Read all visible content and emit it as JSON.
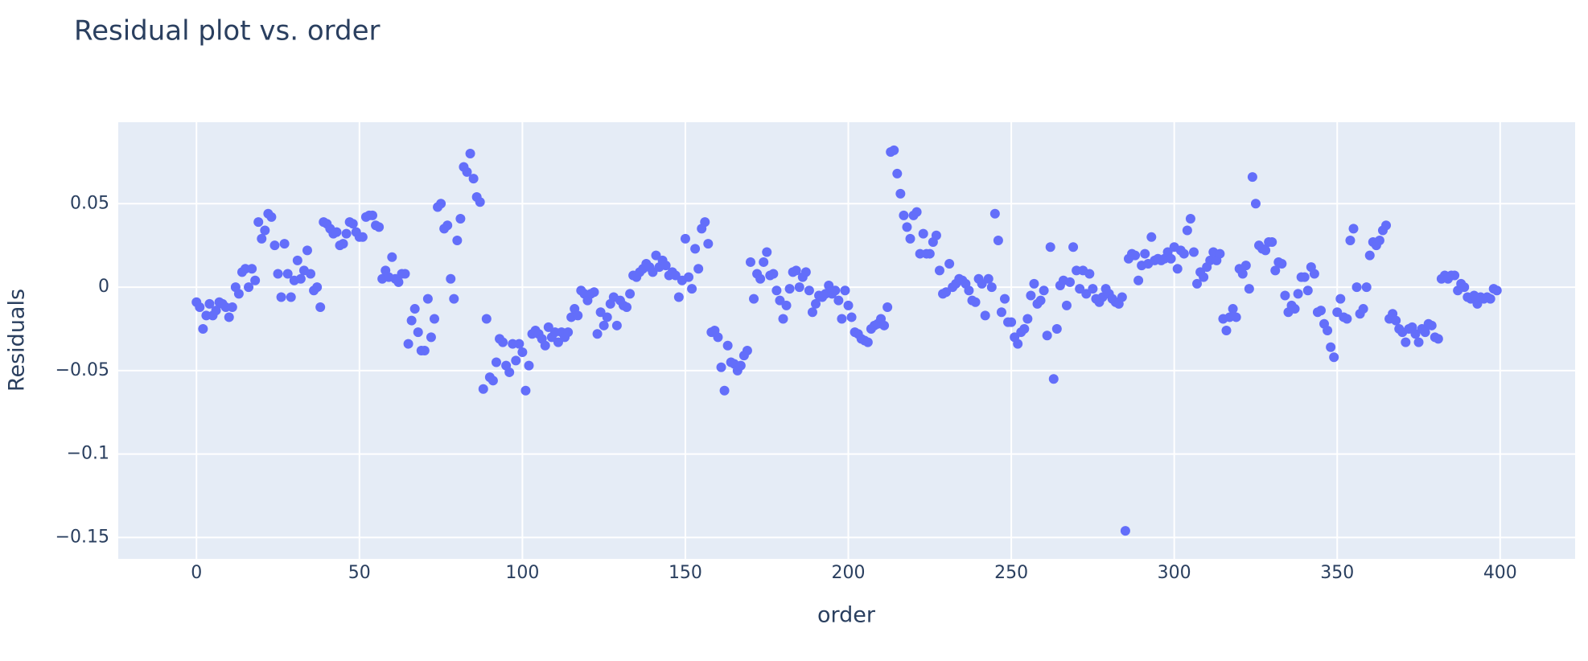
{
  "chart_data": {
    "type": "scatter",
    "title": "Residual plot vs. order",
    "x_label": "order",
    "y_label": "Residuals",
    "color": "#636efa",
    "grid": true,
    "xlim": [
      -24,
      423
    ],
    "ylim": [
      -0.1628,
      0.0988
    ],
    "xticks": [
      0,
      50,
      100,
      150,
      200,
      250,
      300,
      350,
      400
    ],
    "yticks": [
      {
        "value": -0.15,
        "label": "−0.15"
      },
      {
        "value": -0.1,
        "label": "−0.1"
      },
      {
        "value": -0.05,
        "label": "−0.05"
      },
      0,
      0.05
    ],
    "series": [
      {
        "name": "Residuals",
        "color": "#636efa",
        "x": [
          0,
          1,
          2,
          3,
          4,
          5,
          6,
          7,
          8,
          9,
          10,
          11,
          12,
          13,
          14,
          15,
          16,
          17,
          18,
          19,
          20,
          21,
          22,
          23,
          24,
          25,
          26,
          27,
          28,
          29,
          30,
          31,
          32,
          33,
          34,
          35,
          36,
          37,
          38,
          39,
          40,
          41,
          42,
          43,
          44,
          45,
          46,
          47,
          48,
          49,
          50,
          51,
          52,
          53,
          54,
          55,
          56,
          57,
          58,
          59,
          60,
          61,
          62,
          63,
          64,
          65,
          66,
          67,
          68,
          69,
          70,
          71,
          72,
          73,
          74,
          75,
          76,
          77,
          78,
          79,
          80,
          81,
          82,
          83,
          84,
          85,
          86,
          87,
          88,
          89,
          90,
          91,
          92,
          93,
          94,
          95,
          96,
          97,
          98,
          99,
          100,
          101,
          102,
          103,
          104,
          105,
          106,
          107,
          108,
          109,
          110,
          111,
          112,
          113,
          114,
          115,
          116,
          117,
          118,
          119,
          120,
          121,
          122,
          123,
          124,
          125,
          126,
          127,
          128,
          129,
          130,
          131,
          132,
          133,
          134,
          135,
          136,
          137,
          138,
          139,
          140,
          141,
          142,
          143,
          144,
          145,
          146,
          147,
          148,
          149,
          150,
          151,
          152,
          153,
          154,
          155,
          156,
          157,
          158,
          159,
          160,
          161,
          162,
          163,
          164,
          165,
          166,
          167,
          168,
          169,
          170,
          171,
          172,
          173,
          174,
          175,
          176,
          177,
          178,
          179,
          180,
          181,
          182,
          183,
          184,
          185,
          186,
          187,
          188,
          189,
          190,
          191,
          192,
          193,
          194,
          195,
          196,
          197,
          198,
          199,
          200,
          201,
          202,
          203,
          204,
          205,
          206,
          207,
          208,
          209,
          210,
          211,
          212,
          213,
          214,
          215,
          216,
          217,
          218,
          219,
          220,
          221,
          222,
          223,
          224,
          225,
          226,
          227,
          228,
          229,
          230,
          231,
          232,
          233,
          234,
          235,
          236,
          237,
          238,
          239,
          240,
          241,
          242,
          243,
          244,
          245,
          246,
          247,
          248,
          249,
          250,
          251,
          252,
          253,
          254,
          255,
          256,
          257,
          258,
          259,
          260,
          261,
          262,
          263,
          264,
          265,
          266,
          267,
          268,
          269,
          270,
          271,
          272,
          273,
          274,
          275,
          276,
          277,
          278,
          279,
          280,
          281,
          282,
          283,
          284,
          285,
          286,
          287,
          288,
          289,
          290,
          291,
          292,
          293,
          294,
          295,
          296,
          297,
          298,
          299,
          300,
          301,
          302,
          303,
          304,
          305,
          306,
          307,
          308,
          309,
          310,
          311,
          312,
          313,
          314,
          315,
          316,
          317,
          318,
          319,
          320,
          321,
          322,
          323,
          324,
          325,
          326,
          327,
          328,
          329,
          330,
          331,
          332,
          333,
          334,
          335,
          336,
          337,
          338,
          339,
          340,
          341,
          342,
          343,
          344,
          345,
          346,
          347,
          348,
          349,
          350,
          351,
          352,
          353,
          354,
          355,
          356,
          357,
          358,
          359,
          360,
          361,
          362,
          363,
          364,
          365,
          366,
          367,
          368,
          369,
          370,
          371,
          372,
          373,
          374,
          375,
          376,
          377,
          378,
          379,
          380,
          381,
          382,
          383,
          384,
          385,
          386,
          387,
          388,
          389,
          390,
          391,
          392,
          393,
          394,
          395,
          396,
          397,
          398,
          399
        ],
        "values": [
          -0.009,
          -0.012,
          -0.025,
          -0.017,
          -0.01,
          -0.017,
          -0.014,
          -0.009,
          -0.01,
          -0.012,
          -0.018,
          -0.012,
          0.0,
          -0.004,
          0.009,
          0.011,
          0.0,
          0.011,
          0.004,
          0.039,
          0.029,
          0.034,
          0.044,
          0.042,
          0.025,
          0.008,
          -0.006,
          0.026,
          0.008,
          -0.006,
          0.004,
          0.016,
          0.005,
          0.01,
          0.022,
          0.008,
          -0.002,
          0.0,
          -0.012,
          0.039,
          0.038,
          0.035,
          0.032,
          0.033,
          0.025,
          0.026,
          0.032,
          0.039,
          0.038,
          0.033,
          0.03,
          0.03,
          0.042,
          0.043,
          0.043,
          0.037,
          0.036,
          0.005,
          0.01,
          0.006,
          0.018,
          0.005,
          0.003,
          0.008,
          0.008,
          -0.034,
          -0.02,
          -0.013,
          -0.027,
          -0.038,
          -0.038,
          -0.007,
          -0.03,
          -0.019,
          0.048,
          0.05,
          0.035,
          0.037,
          0.005,
          -0.007,
          0.028,
          0.041,
          0.072,
          0.069,
          0.08,
          0.065,
          0.054,
          0.051,
          -0.061,
          -0.019,
          -0.054,
          -0.056,
          -0.045,
          -0.031,
          -0.033,
          -0.047,
          -0.051,
          -0.034,
          -0.044,
          -0.034,
          -0.039,
          -0.062,
          -0.047,
          -0.028,
          -0.026,
          -0.028,
          -0.031,
          -0.035,
          -0.024,
          -0.03,
          -0.027,
          -0.033,
          -0.027,
          -0.03,
          -0.027,
          -0.018,
          -0.013,
          -0.017,
          -0.002,
          -0.004,
          -0.008,
          -0.004,
          -0.003,
          -0.028,
          -0.015,
          -0.023,
          -0.018,
          -0.01,
          -0.006,
          -0.023,
          -0.008,
          -0.011,
          -0.012,
          -0.004,
          0.007,
          0.006,
          0.009,
          0.011,
          0.014,
          0.012,
          0.009,
          0.019,
          0.012,
          0.016,
          0.013,
          0.007,
          0.009,
          0.007,
          -0.006,
          0.004,
          0.029,
          0.006,
          -0.001,
          0.023,
          0.011,
          0.035,
          0.039,
          0.026,
          -0.027,
          -0.026,
          -0.03,
          -0.048,
          -0.062,
          -0.035,
          -0.045,
          -0.046,
          -0.05,
          -0.047,
          -0.041,
          -0.038,
          0.015,
          -0.007,
          0.008,
          0.005,
          0.015,
          0.021,
          0.007,
          0.008,
          -0.002,
          -0.008,
          -0.019,
          -0.011,
          -0.001,
          0.009,
          0.01,
          0.0,
          0.006,
          0.009,
          -0.002,
          -0.015,
          -0.01,
          -0.005,
          -0.006,
          -0.004,
          0.001,
          -0.004,
          -0.002,
          -0.008,
          -0.019,
          -0.002,
          -0.011,
          -0.018,
          -0.027,
          -0.028,
          -0.031,
          -0.032,
          -0.033,
          -0.025,
          -0.023,
          -0.022,
          -0.019,
          -0.023,
          -0.012,
          0.081,
          0.082,
          0.068,
          0.056,
          0.043,
          0.036,
          0.029,
          0.043,
          0.045,
          0.02,
          0.032,
          0.02,
          0.02,
          0.027,
          0.031,
          0.01,
          -0.004,
          -0.003,
          0.014,
          0.0,
          0.002,
          0.005,
          0.004,
          0.002,
          -0.002,
          -0.008,
          -0.009,
          0.005,
          0.002,
          -0.017,
          0.005,
          0.0,
          0.044,
          0.028,
          -0.015,
          -0.007,
          -0.021,
          -0.021,
          -0.03,
          -0.034,
          -0.027,
          -0.025,
          -0.019,
          -0.005,
          0.002,
          -0.01,
          -0.008,
          -0.002,
          -0.029,
          0.024,
          -0.055,
          -0.025,
          0.001,
          0.004,
          -0.011,
          0.003,
          0.024,
          0.01,
          -0.001,
          0.01,
          -0.004,
          0.008,
          -0.001,
          -0.007,
          -0.009,
          -0.006,
          -0.001,
          -0.004,
          -0.007,
          -0.009,
          -0.01,
          -0.006,
          -0.146,
          0.017,
          0.02,
          0.019,
          0.004,
          0.013,
          0.02,
          0.014,
          0.03,
          0.016,
          0.017,
          0.016,
          0.017,
          0.021,
          0.017,
          0.024,
          0.011,
          0.022,
          0.02,
          0.034,
          0.041,
          0.021,
          0.002,
          0.009,
          0.006,
          0.012,
          0.016,
          0.021,
          0.016,
          0.02,
          -0.019,
          -0.026,
          -0.018,
          -0.013,
          -0.018,
          0.011,
          0.008,
          0.013,
          -0.001,
          0.066,
          0.05,
          0.025,
          0.023,
          0.022,
          0.027,
          0.027,
          0.01,
          0.015,
          0.014,
          -0.005,
          -0.015,
          -0.011,
          -0.013,
          -0.004,
          0.006,
          0.006,
          -0.002,
          0.012,
          0.008,
          -0.015,
          -0.014,
          -0.022,
          -0.026,
          -0.036,
          -0.042,
          -0.015,
          -0.007,
          -0.018,
          -0.019,
          0.028,
          0.035,
          0.0,
          -0.016,
          -0.013,
          0.0,
          0.019,
          0.027,
          0.025,
          0.028,
          0.034,
          0.037,
          -0.019,
          -0.016,
          -0.02,
          -0.025,
          -0.027,
          -0.033,
          -0.025,
          -0.024,
          -0.028,
          -0.033,
          -0.025,
          -0.027,
          -0.022,
          -0.023,
          -0.03,
          -0.031,
          0.005,
          0.007,
          0.005,
          0.007,
          0.007,
          -0.002,
          0.002,
          0.0,
          -0.006,
          -0.007,
          -0.005,
          -0.01,
          -0.006,
          -0.007,
          -0.006,
          -0.007,
          -0.001,
          -0.002
        ]
      }
    ]
  }
}
